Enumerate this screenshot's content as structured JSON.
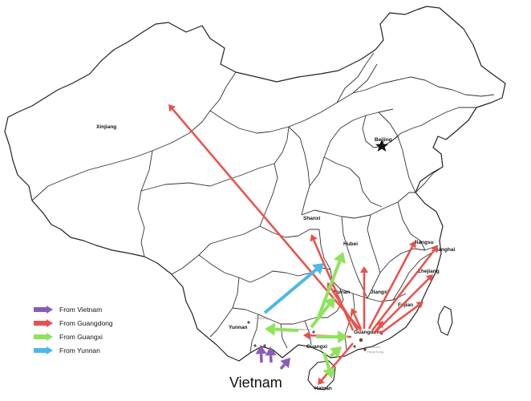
{
  "colors": {
    "vietnam": "#8a5cb8",
    "guangdong": "#e9504b",
    "guangxi": "#8ee35b",
    "yunnan": "#4db8ea"
  },
  "provinces": {
    "xinjiang": "Xinjiang",
    "beijing": "Beijing",
    "shanxi": "Shanxi",
    "hubei": "Hubei",
    "hunan": "Hunan",
    "jiangxi": "Jiangxi",
    "jiangsu": "Jiangsu",
    "shanghai": "Shanghai",
    "zhejiang": "Zhejiang",
    "fujian": "Fujian",
    "guangdong": "Guangdong",
    "guangxi": "Guangxi",
    "yunnan": "Yunnan",
    "hainan": "Hainan"
  },
  "country_label": "Vietnam",
  "legend": [
    {
      "key": "vietnam",
      "label": "From Vietnam"
    },
    {
      "key": "guangdong",
      "label": "From Guangdong"
    },
    {
      "key": "guangxi",
      "label": "From Guangxi"
    },
    {
      "key": "yunnan",
      "label": "From Yunnan"
    }
  ],
  "routes": [
    {
      "source": "Guangdong",
      "target": "Xinjiang"
    },
    {
      "source": "Guangdong",
      "target": "Shanxi"
    },
    {
      "source": "Guangdong",
      "target": "Hubei"
    },
    {
      "source": "Guangdong",
      "target": "Hunan"
    },
    {
      "source": "Guangdong",
      "target": "Jiangxi"
    },
    {
      "source": "Guangdong",
      "target": "Jiangsu"
    },
    {
      "source": "Guangdong",
      "target": "Shanghai"
    },
    {
      "source": "Guangdong",
      "target": "Zhejiang"
    },
    {
      "source": "Guangdong",
      "target": "Fujian"
    },
    {
      "source": "Guangdong",
      "target": "Guangxi"
    },
    {
      "source": "Guangdong",
      "target": "Hainan"
    },
    {
      "source": "Guangxi",
      "target": "Hubei"
    },
    {
      "source": "Guangxi",
      "target": "Hunan"
    },
    {
      "source": "Guangxi",
      "target": "Guangdong"
    },
    {
      "source": "Guangxi",
      "target": "Yunnan"
    },
    {
      "source": "Guangxi",
      "target": "Hainan"
    },
    {
      "source": "Yunnan",
      "target": "Hunan"
    },
    {
      "source": "Vietnam",
      "target": "Yunnan"
    },
    {
      "source": "Vietnam",
      "target": "Guangxi"
    }
  ]
}
